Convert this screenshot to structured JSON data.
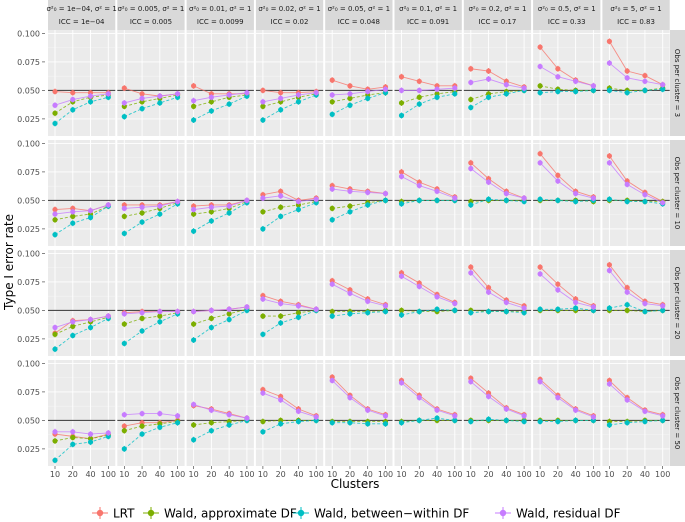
{
  "chart_data": {
    "type": "line",
    "title": "",
    "xlabel": "Clusters",
    "ylabel": "Type I error rate",
    "x": [
      10,
      20,
      40,
      100
    ],
    "x_tick_labels": [
      "10",
      "20",
      "40",
      "100"
    ],
    "y_ticks": [
      0.025,
      0.05,
      0.075,
      0.1
    ],
    "y_tick_labels": [
      "0.025",
      "0.050",
      "0.075",
      "0.100"
    ],
    "ylim": [
      0.01,
      0.103
    ],
    "reference_line": 0.05,
    "legend_position": "bottom",
    "column_strips": [
      {
        "line1": "σ²₀ = 1e−04,  σ² = 1",
        "line2": "ICC = 1e−04"
      },
      {
        "line1": "σ²₀ = 0.005,  σ² = 1",
        "line2": "ICC = 0.005"
      },
      {
        "line1": "σ²₀ = 0.01,  σ² = 1",
        "line2": "ICC = 0.0099"
      },
      {
        "line1": "σ²₀ = 0.02,  σ² = 1",
        "line2": "ICC = 0.02"
      },
      {
        "line1": "σ²₀ = 0.05,  σ² = 1",
        "line2": "ICC = 0.048"
      },
      {
        "line1": "σ²₀ = 0.1,  σ² = 1",
        "line2": "ICC = 0.091"
      },
      {
        "line1": "σ²₀ = 0.2,  σ² = 1",
        "line2": "ICC = 0.17"
      },
      {
        "line1": "σ²₀ = 0.5,  σ² = 1",
        "line2": "ICC = 0.33"
      },
      {
        "line1": "σ²₀ = 5,  σ² = 1",
        "line2": "ICC = 0.83"
      }
    ],
    "row_strips": [
      "Obs per cluster = 3",
      "Obs per cluster = 10",
      "Obs per cluster = 20",
      "Obs per cluster = 50"
    ],
    "series": [
      {
        "name": "LRT",
        "color": "#F8766D"
      },
      {
        "name": "Wald, approximate DF",
        "color": "#7CAE00"
      },
      {
        "name": "Wald, between−within DF",
        "color": "#00BFC4"
      },
      {
        "name": "Wald, residual DF",
        "color": "#C77CFF"
      }
    ],
    "panels": [
      [
        [
          [
            0.049,
            0.048,
            0.048,
            0.048
          ],
          [
            0.03,
            0.04,
            0.044,
            0.046
          ],
          [
            0.021,
            0.033,
            0.04,
            0.044
          ],
          [
            0.037,
            0.042,
            0.045,
            0.047
          ]
        ],
        [
          [
            0.052,
            0.047,
            0.045,
            0.047
          ],
          [
            0.036,
            0.04,
            0.043,
            0.046
          ],
          [
            0.027,
            0.034,
            0.039,
            0.044
          ],
          [
            0.039,
            0.043,
            0.045,
            0.047
          ]
        ],
        [
          [
            0.054,
            0.047,
            0.047,
            0.047
          ],
          [
            0.036,
            0.04,
            0.044,
            0.046
          ],
          [
            0.024,
            0.032,
            0.038,
            0.045
          ],
          [
            0.041,
            0.044,
            0.046,
            0.048
          ]
        ],
        [
          [
            0.05,
            0.048,
            0.048,
            0.049
          ],
          [
            0.036,
            0.04,
            0.044,
            0.047
          ],
          [
            0.024,
            0.033,
            0.04,
            0.046
          ],
          [
            0.04,
            0.043,
            0.046,
            0.048
          ]
        ],
        [
          [
            0.059,
            0.054,
            0.051,
            0.053
          ],
          [
            0.04,
            0.043,
            0.046,
            0.048
          ],
          [
            0.029,
            0.037,
            0.043,
            0.048
          ],
          [
            0.046,
            0.047,
            0.049,
            0.051
          ]
        ],
        [
          [
            0.062,
            0.058,
            0.054,
            0.054
          ],
          [
            0.039,
            0.044,
            0.047,
            0.049
          ],
          [
            0.028,
            0.038,
            0.044,
            0.047
          ],
          [
            0.05,
            0.05,
            0.051,
            0.052
          ]
        ],
        [
          [
            0.069,
            0.067,
            0.058,
            0.053
          ],
          [
            0.042,
            0.047,
            0.049,
            0.05
          ],
          [
            0.035,
            0.044,
            0.047,
            0.05
          ],
          [
            0.057,
            0.06,
            0.055,
            0.052
          ]
        ],
        [
          [
            0.088,
            0.069,
            0.059,
            0.054
          ],
          [
            0.054,
            0.051,
            0.05,
            0.05
          ],
          [
            0.048,
            0.049,
            0.049,
            0.05
          ],
          [
            0.071,
            0.062,
            0.058,
            0.054
          ]
        ],
        [
          [
            0.093,
            0.067,
            0.063,
            0.055
          ],
          [
            0.052,
            0.05,
            0.05,
            0.052
          ],
          [
            0.05,
            0.048,
            0.05,
            0.051
          ],
          [
            0.074,
            0.061,
            0.058,
            0.055
          ]
        ]
      ],
      [
        [
          [
            0.042,
            0.043,
            0.041,
            0.046
          ],
          [
            0.033,
            0.036,
            0.038,
            0.045
          ],
          [
            0.02,
            0.03,
            0.035,
            0.045
          ],
          [
            0.038,
            0.04,
            0.041,
            0.046
          ]
        ],
        [
          [
            0.046,
            0.046,
            0.046,
            0.049
          ],
          [
            0.036,
            0.039,
            0.043,
            0.048
          ],
          [
            0.021,
            0.031,
            0.038,
            0.047
          ],
          [
            0.043,
            0.044,
            0.045,
            0.049
          ]
        ],
        [
          [
            0.045,
            0.046,
            0.046,
            0.05
          ],
          [
            0.038,
            0.04,
            0.043,
            0.049
          ],
          [
            0.023,
            0.032,
            0.039,
            0.048
          ],
          [
            0.042,
            0.044,
            0.045,
            0.05
          ]
        ],
        [
          [
            0.055,
            0.058,
            0.05,
            0.052
          ],
          [
            0.04,
            0.044,
            0.046,
            0.049
          ],
          [
            0.025,
            0.036,
            0.042,
            0.048
          ],
          [
            0.052,
            0.054,
            0.049,
            0.051
          ]
        ],
        [
          [
            0.063,
            0.06,
            0.058,
            0.056
          ],
          [
            0.043,
            0.045,
            0.048,
            0.05
          ],
          [
            0.033,
            0.04,
            0.046,
            0.05
          ],
          [
            0.06,
            0.058,
            0.057,
            0.056
          ]
        ],
        [
          [
            0.075,
            0.066,
            0.06,
            0.053
          ],
          [
            0.049,
            0.05,
            0.05,
            0.05
          ],
          [
            0.047,
            0.05,
            0.05,
            0.05
          ],
          [
            0.071,
            0.063,
            0.058,
            0.052
          ]
        ],
        [
          [
            0.083,
            0.069,
            0.058,
            0.052
          ],
          [
            0.049,
            0.05,
            0.05,
            0.05
          ],
          [
            0.046,
            0.051,
            0.05,
            0.049
          ],
          [
            0.078,
            0.066,
            0.056,
            0.052
          ]
        ],
        [
          [
            0.091,
            0.072,
            0.058,
            0.053
          ],
          [
            0.05,
            0.05,
            0.05,
            0.049
          ],
          [
            0.051,
            0.05,
            0.049,
            0.05
          ],
          [
            0.083,
            0.067,
            0.056,
            0.052
          ]
        ],
        [
          [
            0.089,
            0.067,
            0.057,
            0.049
          ],
          [
            0.05,
            0.05,
            0.049,
            0.049
          ],
          [
            0.051,
            0.049,
            0.049,
            0.047
          ],
          [
            0.083,
            0.064,
            0.055,
            0.048
          ]
        ]
      ],
      [
        [
          [
            0.03,
            0.041,
            0.042,
            0.045
          ],
          [
            0.029,
            0.036,
            0.04,
            0.044
          ],
          [
            0.016,
            0.028,
            0.035,
            0.043
          ],
          [
            0.035,
            0.04,
            0.042,
            0.045
          ]
        ],
        [
          [
            0.048,
            0.049,
            0.049,
            0.049
          ],
          [
            0.038,
            0.043,
            0.045,
            0.048
          ],
          [
            0.021,
            0.032,
            0.04,
            0.047
          ],
          [
            0.047,
            0.048,
            0.049,
            0.049
          ]
        ],
        [
          [
            0.049,
            0.05,
            0.051,
            0.053
          ],
          [
            0.038,
            0.043,
            0.047,
            0.051
          ],
          [
            0.024,
            0.035,
            0.042,
            0.05
          ],
          [
            0.049,
            0.05,
            0.051,
            0.053
          ]
        ],
        [
          [
            0.063,
            0.058,
            0.055,
            0.051
          ],
          [
            0.045,
            0.045,
            0.048,
            0.05
          ],
          [
            0.029,
            0.039,
            0.044,
            0.05
          ],
          [
            0.06,
            0.056,
            0.054,
            0.051
          ]
        ],
        [
          [
            0.076,
            0.068,
            0.06,
            0.055
          ],
          [
            0.049,
            0.049,
            0.049,
            0.05
          ],
          [
            0.045,
            0.047,
            0.048,
            0.049
          ],
          [
            0.073,
            0.065,
            0.058,
            0.054
          ]
        ],
        [
          [
            0.083,
            0.074,
            0.064,
            0.057
          ],
          [
            0.05,
            0.049,
            0.049,
            0.05
          ],
          [
            0.046,
            0.049,
            0.051,
            0.05
          ],
          [
            0.08,
            0.071,
            0.062,
            0.056
          ]
        ],
        [
          [
            0.088,
            0.07,
            0.059,
            0.054
          ],
          [
            0.05,
            0.049,
            0.049,
            0.049
          ],
          [
            0.048,
            0.049,
            0.049,
            0.048
          ],
          [
            0.083,
            0.066,
            0.057,
            0.052
          ]
        ],
        [
          [
            0.088,
            0.073,
            0.06,
            0.054
          ],
          [
            0.05,
            0.05,
            0.05,
            0.05
          ],
          [
            0.051,
            0.051,
            0.052,
            0.05
          ],
          [
            0.082,
            0.068,
            0.057,
            0.053
          ]
        ],
        [
          [
            0.09,
            0.07,
            0.058,
            0.055
          ],
          [
            0.05,
            0.05,
            0.049,
            0.05
          ],
          [
            0.052,
            0.055,
            0.049,
            0.05
          ],
          [
            0.085,
            0.066,
            0.056,
            0.054
          ]
        ]
      ],
      [
        [
          [
            0.038,
            0.036,
            0.034,
            0.038
          ],
          [
            0.032,
            0.035,
            0.034,
            0.037
          ],
          [
            0.015,
            0.029,
            0.031,
            0.036
          ],
          [
            0.04,
            0.04,
            0.038,
            0.039
          ]
        ],
        [
          [
            0.045,
            0.048,
            0.048,
            0.05
          ],
          [
            0.041,
            0.045,
            0.047,
            0.049
          ],
          [
            0.025,
            0.038,
            0.044,
            0.048
          ],
          [
            0.055,
            0.056,
            0.056,
            0.054
          ]
        ],
        [
          [
            0.063,
            0.06,
            0.056,
            0.052
          ],
          [
            0.046,
            0.048,
            0.049,
            0.05
          ],
          [
            0.033,
            0.041,
            0.046,
            0.05
          ],
          [
            0.064,
            0.059,
            0.055,
            0.052
          ]
        ],
        [
          [
            0.077,
            0.071,
            0.06,
            0.054
          ],
          [
            0.049,
            0.05,
            0.05,
            0.05
          ],
          [
            0.04,
            0.047,
            0.049,
            0.05
          ],
          [
            0.074,
            0.068,
            0.058,
            0.053
          ]
        ],
        [
          [
            0.088,
            0.072,
            0.06,
            0.055
          ],
          [
            0.049,
            0.049,
            0.049,
            0.049
          ],
          [
            0.048,
            0.048,
            0.047,
            0.047
          ],
          [
            0.085,
            0.07,
            0.059,
            0.054
          ]
        ],
        [
          [
            0.085,
            0.072,
            0.06,
            0.055
          ],
          [
            0.049,
            0.05,
            0.05,
            0.05
          ],
          [
            0.048,
            0.05,
            0.052,
            0.05
          ],
          [
            0.083,
            0.07,
            0.059,
            0.054
          ]
        ],
        [
          [
            0.087,
            0.074,
            0.061,
            0.055
          ],
          [
            0.05,
            0.05,
            0.05,
            0.05
          ],
          [
            0.049,
            0.051,
            0.05,
            0.049
          ],
          [
            0.084,
            0.071,
            0.06,
            0.054
          ]
        ],
        [
          [
            0.086,
            0.072,
            0.06,
            0.054
          ],
          [
            0.05,
            0.05,
            0.05,
            0.05
          ],
          [
            0.049,
            0.049,
            0.05,
            0.05
          ],
          [
            0.084,
            0.07,
            0.059,
            0.053
          ]
        ],
        [
          [
            0.085,
            0.07,
            0.059,
            0.055
          ],
          [
            0.049,
            0.049,
            0.05,
            0.05
          ],
          [
            0.046,
            0.048,
            0.049,
            0.05
          ],
          [
            0.082,
            0.068,
            0.058,
            0.054
          ]
        ]
      ]
    ]
  }
}
